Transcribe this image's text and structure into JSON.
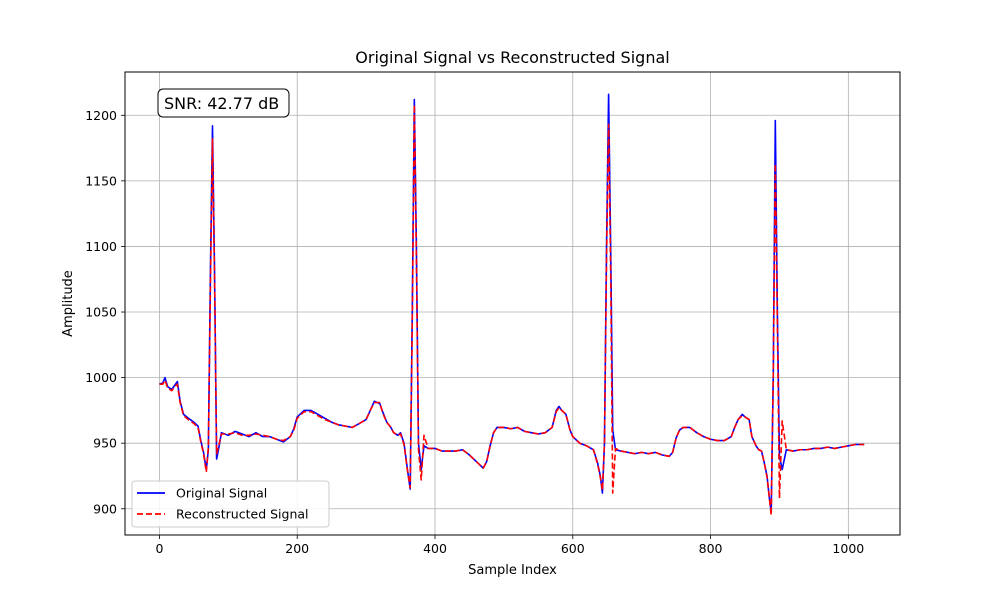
{
  "chart_data": {
    "type": "line",
    "title": "Original Signal vs Reconstructed Signal",
    "xlabel": "Sample Index",
    "ylabel": "Amplitude",
    "xlim": [
      -50,
      1075
    ],
    "ylim": [
      880,
      1233
    ],
    "xticks": [
      0,
      200,
      400,
      600,
      800,
      1000
    ],
    "yticks": [
      900,
      950,
      1000,
      1050,
      1100,
      1150,
      1200
    ],
    "grid": true,
    "legend_position": "lower-left",
    "annotation": "SNR: 42.77 dB",
    "series": [
      {
        "name": "Original Signal",
        "color": "#0000ff",
        "style": "solid",
        "points": [
          [
            0,
            995
          ],
          [
            5,
            996
          ],
          [
            8,
            1000
          ],
          [
            12,
            993
          ],
          [
            18,
            991
          ],
          [
            22,
            994
          ],
          [
            26,
            997
          ],
          [
            30,
            982
          ],
          [
            35,
            972
          ],
          [
            42,
            969
          ],
          [
            50,
            966
          ],
          [
            56,
            963
          ],
          [
            60,
            952
          ],
          [
            64,
            943
          ],
          [
            68,
            930
          ],
          [
            71,
            945
          ],
          [
            74,
            1080
          ],
          [
            77,
            1192
          ],
          [
            80,
            1080
          ],
          [
            83,
            938
          ],
          [
            86,
            946
          ],
          [
            90,
            958
          ],
          [
            100,
            956
          ],
          [
            110,
            959
          ],
          [
            120,
            957
          ],
          [
            130,
            955
          ],
          [
            140,
            958
          ],
          [
            150,
            955
          ],
          [
            160,
            955
          ],
          [
            170,
            953
          ],
          [
            180,
            951
          ],
          [
            190,
            955
          ],
          [
            195,
            961
          ],
          [
            200,
            970
          ],
          [
            210,
            975
          ],
          [
            220,
            975
          ],
          [
            230,
            972
          ],
          [
            240,
            969
          ],
          [
            250,
            966
          ],
          [
            260,
            964
          ],
          [
            270,
            963
          ],
          [
            280,
            962
          ],
          [
            290,
            965
          ],
          [
            300,
            968
          ],
          [
            306,
            975
          ],
          [
            312,
            982
          ],
          [
            320,
            980
          ],
          [
            324,
            974
          ],
          [
            330,
            966
          ],
          [
            336,
            962
          ],
          [
            340,
            958
          ],
          [
            346,
            956
          ],
          [
            350,
            958
          ],
          [
            355,
            950
          ],
          [
            360,
            930
          ],
          [
            364,
            915
          ],
          [
            367,
            1050
          ],
          [
            370,
            1212
          ],
          [
            373,
            1100
          ],
          [
            376,
            950
          ],
          [
            380,
            930
          ],
          [
            384,
            948
          ],
          [
            390,
            946
          ],
          [
            400,
            946
          ],
          [
            410,
            944
          ],
          [
            420,
            944
          ],
          [
            430,
            944
          ],
          [
            440,
            945
          ],
          [
            450,
            941
          ],
          [
            460,
            936
          ],
          [
            470,
            931
          ],
          [
            475,
            936
          ],
          [
            480,
            948
          ],
          [
            485,
            958
          ],
          [
            490,
            962
          ],
          [
            500,
            962
          ],
          [
            510,
            961
          ],
          [
            520,
            962
          ],
          [
            530,
            959
          ],
          [
            540,
            958
          ],
          [
            550,
            957
          ],
          [
            560,
            958
          ],
          [
            570,
            962
          ],
          [
            576,
            975
          ],
          [
            580,
            978
          ],
          [
            584,
            975
          ],
          [
            590,
            972
          ],
          [
            596,
            960
          ],
          [
            600,
            955
          ],
          [
            610,
            950
          ],
          [
            620,
            948
          ],
          [
            630,
            945
          ],
          [
            636,
            935
          ],
          [
            640,
            925
          ],
          [
            643,
            912
          ],
          [
            646,
            950
          ],
          [
            649,
            1100
          ],
          [
            652,
            1216
          ],
          [
            655,
            1100
          ],
          [
            658,
            960
          ],
          [
            662,
            945
          ],
          [
            670,
            944
          ],
          [
            680,
            943
          ],
          [
            690,
            942
          ],
          [
            700,
            943
          ],
          [
            710,
            942
          ],
          [
            720,
            943
          ],
          [
            730,
            941
          ],
          [
            740,
            940
          ],
          [
            745,
            943
          ],
          [
            750,
            954
          ],
          [
            755,
            960
          ],
          [
            760,
            962
          ],
          [
            770,
            962
          ],
          [
            780,
            958
          ],
          [
            790,
            955
          ],
          [
            800,
            953
          ],
          [
            810,
            952
          ],
          [
            820,
            952
          ],
          [
            830,
            955
          ],
          [
            835,
            962
          ],
          [
            840,
            968
          ],
          [
            846,
            972
          ],
          [
            850,
            970
          ],
          [
            856,
            968
          ],
          [
            860,
            955
          ],
          [
            866,
            948
          ],
          [
            870,
            945
          ],
          [
            874,
            944
          ],
          [
            878,
            935
          ],
          [
            882,
            925
          ],
          [
            885,
            910
          ],
          [
            888,
            897
          ],
          [
            891,
            1000
          ],
          [
            894,
            1196
          ],
          [
            897,
            1050
          ],
          [
            900,
            940
          ],
          [
            904,
            930
          ],
          [
            910,
            945
          ],
          [
            920,
            944
          ],
          [
            930,
            945
          ],
          [
            940,
            945
          ],
          [
            950,
            946
          ],
          [
            960,
            946
          ],
          [
            970,
            947
          ],
          [
            980,
            946
          ],
          [
            990,
            947
          ],
          [
            1000,
            948
          ],
          [
            1010,
            949
          ],
          [
            1023,
            949
          ]
        ]
      },
      {
        "name": "Reconstructed Signal",
        "color": "#ff0000",
        "style": "dashed",
        "points": [
          [
            0,
            995
          ],
          [
            5,
            995
          ],
          [
            8,
            998
          ],
          [
            12,
            992
          ],
          [
            18,
            990
          ],
          [
            22,
            993
          ],
          [
            26,
            995
          ],
          [
            30,
            981
          ],
          [
            35,
            971
          ],
          [
            42,
            968
          ],
          [
            50,
            965
          ],
          [
            56,
            962
          ],
          [
            60,
            951
          ],
          [
            64,
            942
          ],
          [
            68,
            928
          ],
          [
            71,
            947
          ],
          [
            74,
            1070
          ],
          [
            77,
            1182
          ],
          [
            80,
            1075
          ],
          [
            83,
            942
          ],
          [
            86,
            948
          ],
          [
            90,
            957
          ],
          [
            100,
            957
          ],
          [
            110,
            958
          ],
          [
            120,
            956
          ],
          [
            130,
            956
          ],
          [
            140,
            957
          ],
          [
            150,
            956
          ],
          [
            160,
            955
          ],
          [
            170,
            953
          ],
          [
            180,
            952
          ],
          [
            190,
            955
          ],
          [
            195,
            960
          ],
          [
            200,
            969
          ],
          [
            210,
            974
          ],
          [
            220,
            974
          ],
          [
            230,
            971
          ],
          [
            240,
            968
          ],
          [
            250,
            966
          ],
          [
            260,
            964
          ],
          [
            270,
            963
          ],
          [
            280,
            962
          ],
          [
            290,
            965
          ],
          [
            300,
            968
          ],
          [
            306,
            975
          ],
          [
            312,
            981
          ],
          [
            320,
            981
          ],
          [
            324,
            973
          ],
          [
            330,
            966
          ],
          [
            336,
            962
          ],
          [
            340,
            958
          ],
          [
            346,
            956
          ],
          [
            350,
            957
          ],
          [
            355,
            949
          ],
          [
            360,
            929
          ],
          [
            364,
            916
          ],
          [
            367,
            1040
          ],
          [
            370,
            1208
          ],
          [
            373,
            1090
          ],
          [
            376,
            945
          ],
          [
            380,
            922
          ],
          [
            384,
            956
          ],
          [
            390,
            946
          ],
          [
            400,
            946
          ],
          [
            410,
            944
          ],
          [
            420,
            944
          ],
          [
            430,
            944
          ],
          [
            440,
            945
          ],
          [
            450,
            941
          ],
          [
            460,
            936
          ],
          [
            470,
            931
          ],
          [
            475,
            936
          ],
          [
            480,
            948
          ],
          [
            485,
            958
          ],
          [
            490,
            962
          ],
          [
            500,
            962
          ],
          [
            510,
            961
          ],
          [
            520,
            962
          ],
          [
            530,
            959
          ],
          [
            540,
            958
          ],
          [
            550,
            957
          ],
          [
            560,
            958
          ],
          [
            570,
            962
          ],
          [
            576,
            974
          ],
          [
            580,
            977
          ],
          [
            584,
            975
          ],
          [
            590,
            972
          ],
          [
            596,
            960
          ],
          [
            600,
            955
          ],
          [
            610,
            950
          ],
          [
            620,
            948
          ],
          [
            630,
            945
          ],
          [
            636,
            934
          ],
          [
            640,
            924
          ],
          [
            643,
            914
          ],
          [
            646,
            950
          ],
          [
            649,
            1090
          ],
          [
            652,
            1193
          ],
          [
            655,
            1080
          ],
          [
            658,
            912
          ],
          [
            662,
            946
          ],
          [
            670,
            944
          ],
          [
            680,
            943
          ],
          [
            690,
            942
          ],
          [
            700,
            943
          ],
          [
            710,
            942
          ],
          [
            720,
            943
          ],
          [
            730,
            941
          ],
          [
            740,
            940
          ],
          [
            745,
            943
          ],
          [
            750,
            954
          ],
          [
            755,
            960
          ],
          [
            760,
            962
          ],
          [
            770,
            962
          ],
          [
            780,
            958
          ],
          [
            790,
            955
          ],
          [
            800,
            953
          ],
          [
            810,
            952
          ],
          [
            820,
            952
          ],
          [
            830,
            955
          ],
          [
            835,
            962
          ],
          [
            840,
            968
          ],
          [
            846,
            971
          ],
          [
            850,
            970
          ],
          [
            856,
            968
          ],
          [
            860,
            955
          ],
          [
            866,
            948
          ],
          [
            870,
            945
          ],
          [
            874,
            944
          ],
          [
            878,
            935
          ],
          [
            882,
            924
          ],
          [
            885,
            910
          ],
          [
            888,
            895
          ],
          [
            891,
            1000
          ],
          [
            894,
            1163
          ],
          [
            897,
            1040
          ],
          [
            900,
            908
          ],
          [
            904,
            967
          ],
          [
            910,
            945
          ],
          [
            920,
            944
          ],
          [
            930,
            945
          ],
          [
            940,
            945
          ],
          [
            950,
            946
          ],
          [
            960,
            946
          ],
          [
            970,
            947
          ],
          [
            980,
            946
          ],
          [
            990,
            947
          ],
          [
            1000,
            948
          ],
          [
            1010,
            949
          ],
          [
            1023,
            949
          ]
        ]
      }
    ]
  }
}
